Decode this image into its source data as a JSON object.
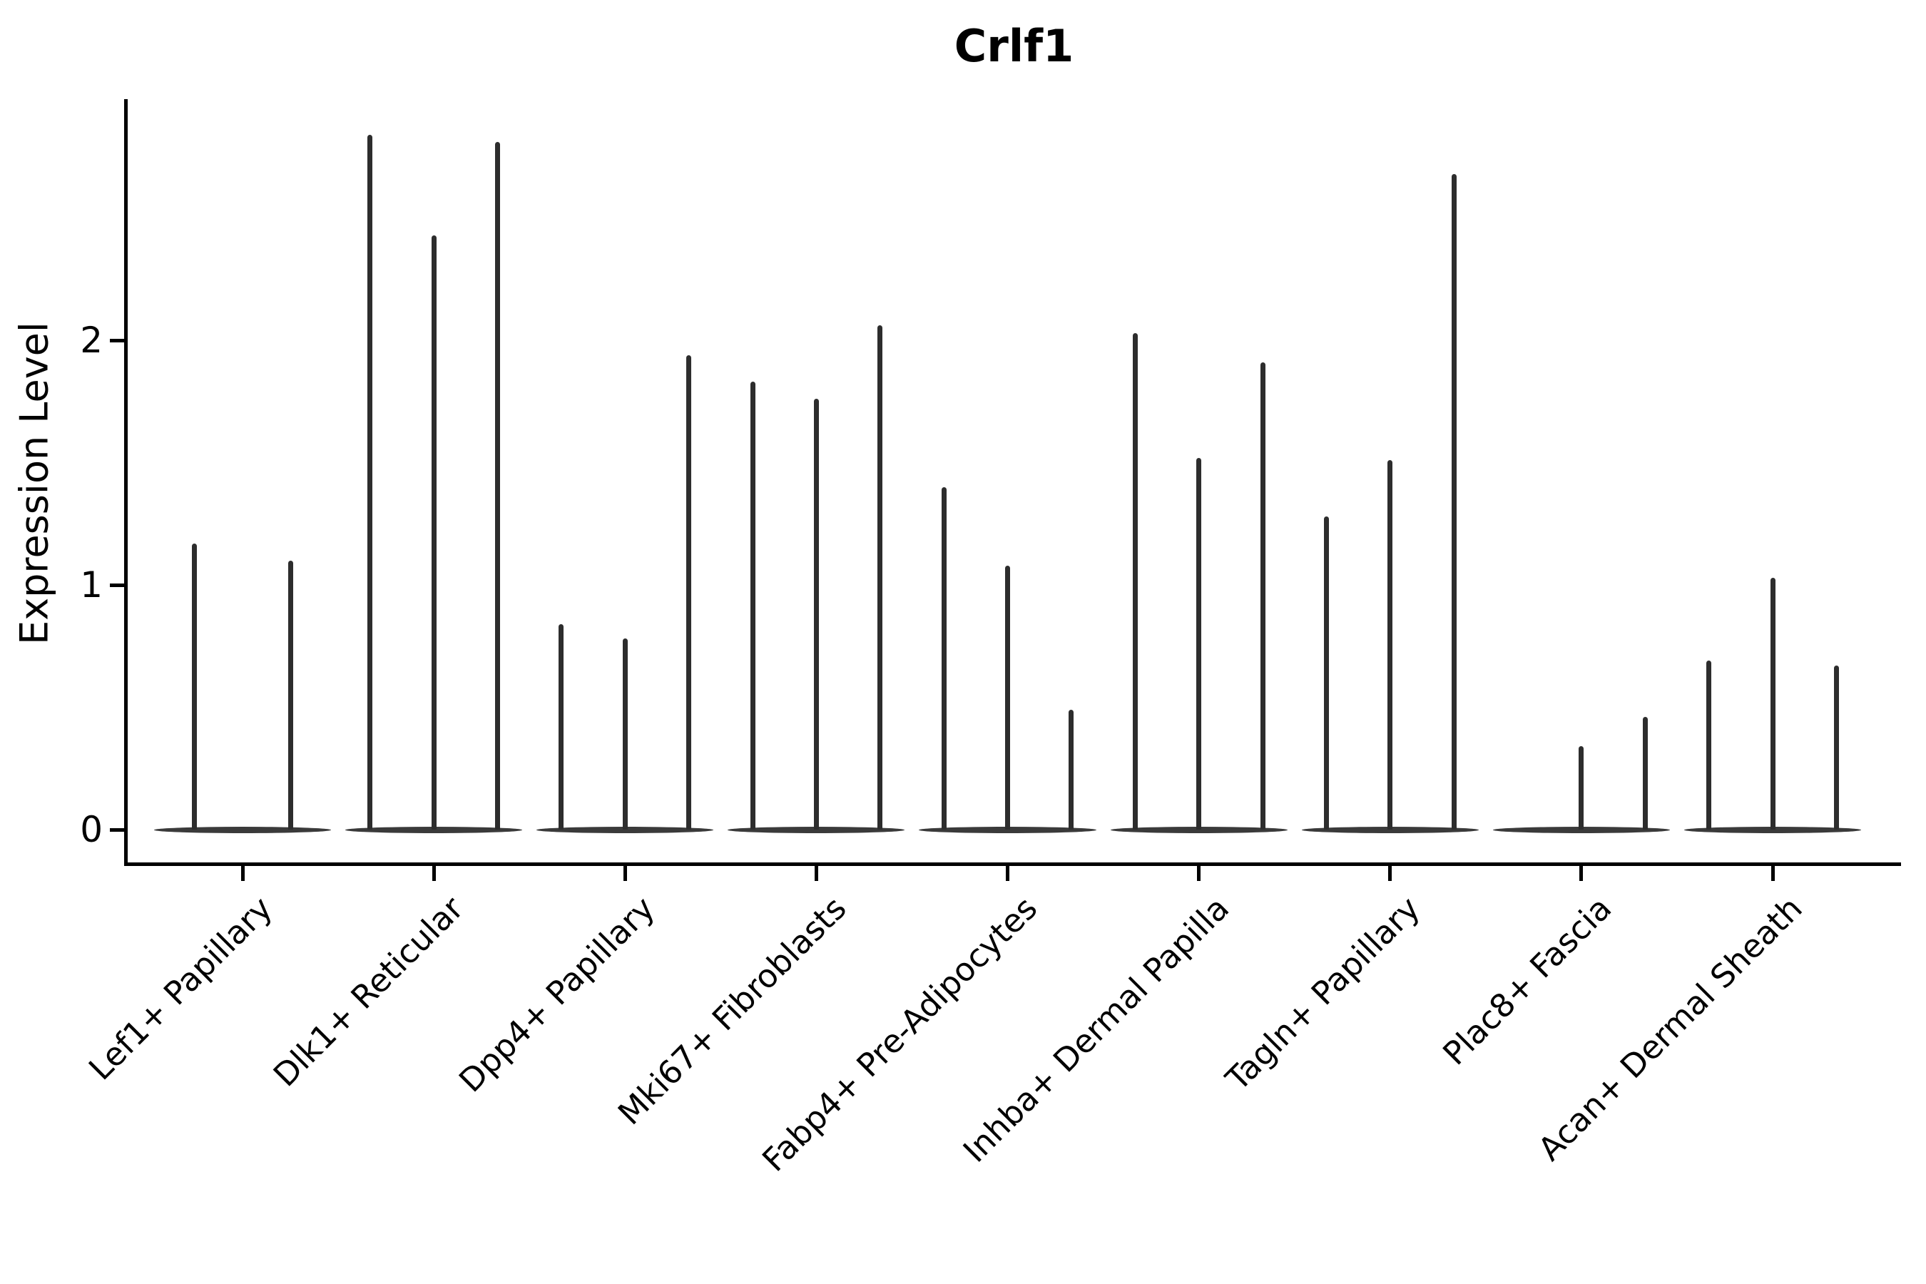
{
  "title": "Crlf1",
  "y_axis": {
    "label": "Expression Level",
    "tick_labels": [
      "0",
      "1",
      "2"
    ]
  },
  "colors": {
    "ink": "#000000",
    "spike": "#2d2d2d",
    "violin_base": "#3a3a3a",
    "background": "#ffffff"
  },
  "chart_data": {
    "type": "violin",
    "title": "Crlf1",
    "xlabel": "",
    "ylabel": "Expression Level",
    "yticks": [
      0,
      1,
      2
    ],
    "ylim": [
      -0.13,
      2.99
    ],
    "grid": false,
    "legend": "none",
    "description": "Seurat-style violin plot of Crlf1 expression; each cluster holds 2-3 needle-thin violins (flat mass at 0 with a thin spike to the max expression value). Spike values below are the top of each violin in expression units; 0 means flat base only with no spike.",
    "categories": [
      "Lef1+ Papillary",
      "Dlk1+ Reticular",
      "Dpp4+ Papillary",
      "Mki67+ Fibroblasts",
      "Fabp4+ Pre-Adipocytes",
      "Inhba+ Dermal Papilla",
      "Tagln+ Papillary",
      "Plac8+ Fascia",
      "Acan+ Dermal Sheath"
    ],
    "groups": [
      {
        "category": "Lef1+ Papillary",
        "violins": [
          1.17,
          1.1
        ]
      },
      {
        "category": "Dlk1+ Reticular",
        "violins": [
          2.84,
          2.43,
          2.81
        ]
      },
      {
        "category": "Dpp4+ Papillary",
        "violins": [
          0.84,
          0.78,
          1.94
        ]
      },
      {
        "category": "Mki67+ Fibroblasts",
        "violins": [
          1.83,
          1.76,
          2.06
        ]
      },
      {
        "category": "Fabp4+ Pre-Adipocytes",
        "violins": [
          1.4,
          1.08,
          0.49
        ]
      },
      {
        "category": "Inhba+ Dermal Papilla",
        "violins": [
          2.03,
          1.52,
          1.91
        ]
      },
      {
        "category": "Tagln+ Papillary",
        "violins": [
          1.28,
          1.51,
          2.68
        ]
      },
      {
        "category": "Plac8+ Fascia",
        "violins": [
          0,
          0.34,
          0.46
        ]
      },
      {
        "category": "Acan+ Dermal Sheath",
        "violins": [
          0.69,
          1.03,
          0.67
        ]
      }
    ]
  }
}
